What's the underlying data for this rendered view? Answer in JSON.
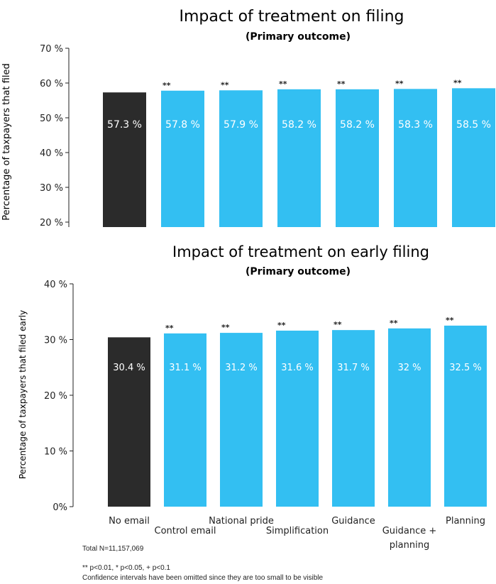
{
  "colors": {
    "control": "#2b2b2b",
    "treatment": "#33bff2",
    "title": "#2c2f6e",
    "bar_label": "#ffffff",
    "axis": "#222222"
  },
  "chart_data": [
    {
      "type": "bar",
      "title": "Impact of treatment on filing",
      "subtitle": "(Primary outcome)",
      "ylabel": "Percentage of taxpayers that filed",
      "xlabel": "",
      "ylim": [
        20,
        70
      ],
      "yticks": [
        20,
        30,
        40,
        50,
        60,
        70
      ],
      "ytick_labels": [
        "20 %",
        "30 %",
        "40 %",
        "50 %",
        "60 %",
        "70 %"
      ],
      "categories": [
        "No email",
        "Control email",
        "National pride",
        "Simplification",
        "Guidance",
        "Guidance + planning",
        "Planning"
      ],
      "values": [
        57.3,
        57.8,
        57.9,
        58.2,
        58.2,
        58.3,
        58.5
      ],
      "value_labels": [
        "57.3 %",
        "57.8 %",
        "57.9 %",
        "58.2 %",
        "58.2 %",
        "58.3 %",
        "58.5 %"
      ],
      "significance": [
        "",
        "**",
        "**",
        "**",
        "**",
        "**",
        "**"
      ],
      "grid": false
    },
    {
      "type": "bar",
      "title": "Impact of treatment on early filing",
      "subtitle": "(Primary outcome)",
      "ylabel": "Percentage of taxpayers that filed early",
      "xlabel": "",
      "ylim": [
        0,
        40
      ],
      "yticks": [
        0,
        10,
        20,
        30,
        40
      ],
      "ytick_labels": [
        "0%",
        "10 %",
        "20 %",
        "30 %",
        "40 %"
      ],
      "categories": [
        "No email",
        "Control email",
        "National pride",
        "Simplification",
        "Guidance",
        "Guidance + planning",
        "Planning"
      ],
      "category_labels": [
        [
          "No email"
        ],
        [
          "Control email"
        ],
        [
          "National pride"
        ],
        [
          "Simplification"
        ],
        [
          "Guidance"
        ],
        [
          "Guidance +",
          "planning"
        ],
        [
          "Planning"
        ]
      ],
      "values": [
        30.4,
        31.1,
        31.2,
        31.6,
        31.7,
        32.0,
        32.5
      ],
      "value_labels": [
        "30.4 %",
        "31.1 %",
        "31.2 %",
        "31.6 %",
        "31.7 %",
        "32 %",
        "32.5 %"
      ],
      "significance": [
        "",
        "**",
        "**",
        "**",
        "**",
        "**",
        "**"
      ],
      "grid": false
    }
  ],
  "footnotes": {
    "total": "Total N=11,157,069",
    "significance_legend": "** p<0.01, * p<0.05, + p<0.1",
    "confidence_note": "Confidence intervals have been omitted since they are too small to be visible"
  }
}
